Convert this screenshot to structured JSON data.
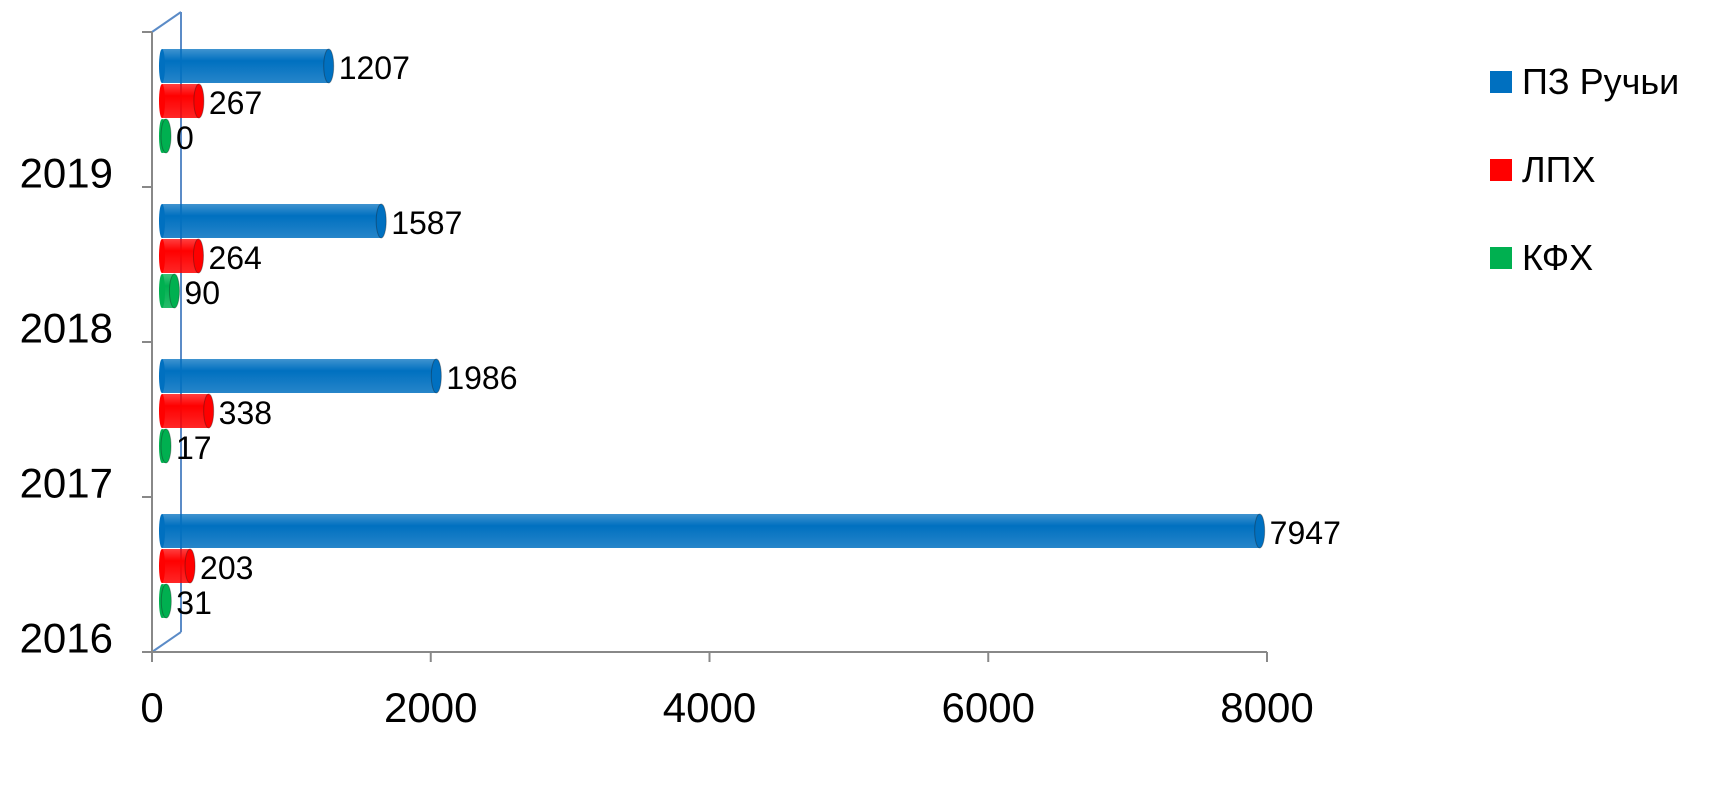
{
  "chart_data": {
    "type": "bar",
    "orientation": "horizontal",
    "categories": [
      "2016",
      "2017",
      "2018",
      "2019"
    ],
    "series": [
      {
        "name": "ПЗ Ручьи",
        "values": [
          7947,
          1986,
          1587,
          1207
        ],
        "labels": [
          "7947",
          "1986",
          "1587",
          "1207"
        ],
        "color": "#0070C0"
      },
      {
        "name": "ЛПХ",
        "values": [
          203,
          338,
          264,
          267
        ],
        "labels": [
          "203",
          "338",
          "264",
          "267"
        ],
        "color": "#FF0000"
      },
      {
        "name": "КФХ",
        "values": [
          31,
          17,
          90,
          0
        ],
        "labels": [
          "31",
          "17",
          "90",
          "0"
        ],
        "color": "#00B050"
      }
    ],
    "x_ticks": [
      0,
      2000,
      4000,
      6000,
      8000
    ],
    "x_tick_labels": [
      "0",
      "2000",
      "4000",
      "6000",
      "8000"
    ],
    "xlim": [
      0,
      8000
    ],
    "title": "",
    "xlabel": "",
    "ylabel": "",
    "grid": false,
    "legend_position": "right"
  }
}
